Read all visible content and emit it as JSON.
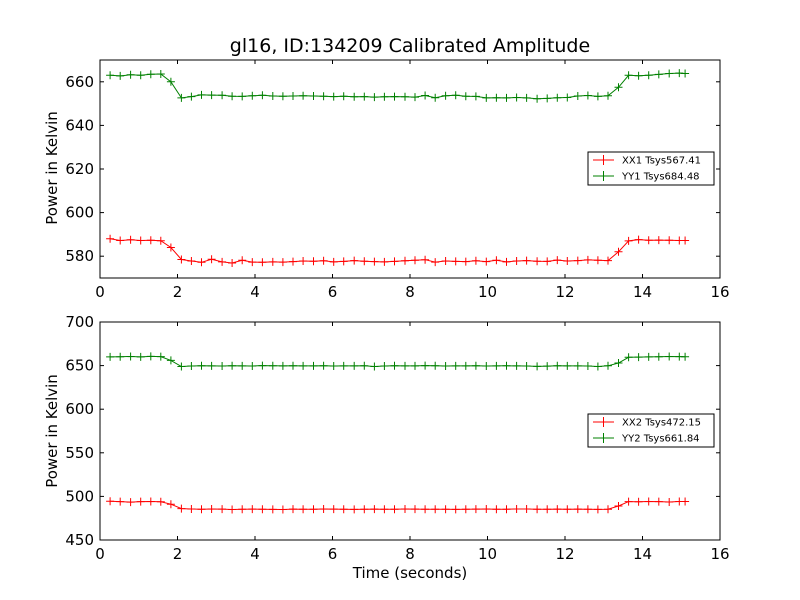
{
  "chart_data": [
    {
      "type": "line",
      "title": "gl16, ID:134209 Calibrated Amplitude",
      "xlabel": "",
      "ylabel": "Power in Kelvin",
      "xlim": [
        0,
        16
      ],
      "ylim": [
        570,
        670
      ],
      "xticks": [
        0,
        2,
        4,
        6,
        8,
        10,
        12,
        14,
        16
      ],
      "yticks": [
        580,
        600,
        620,
        640,
        660
      ],
      "legend_position": "right",
      "x": [
        0.26,
        0.52,
        0.79,
        1.05,
        1.31,
        1.57,
        1.83,
        2.1,
        2.36,
        2.62,
        2.88,
        3.15,
        3.41,
        3.67,
        3.93,
        4.19,
        4.46,
        4.72,
        4.98,
        5.24,
        5.51,
        5.77,
        6.03,
        6.29,
        6.56,
        6.82,
        7.08,
        7.34,
        7.6,
        7.87,
        8.13,
        8.39,
        8.65,
        8.92,
        9.18,
        9.44,
        9.7,
        9.97,
        10.23,
        10.49,
        10.75,
        11.01,
        11.28,
        11.54,
        11.8,
        12.06,
        12.33,
        12.59,
        12.85,
        13.11,
        13.38,
        13.64,
        13.9,
        14.16,
        14.42,
        14.69,
        14.95,
        15.1
      ],
      "series": [
        {
          "name": "XX1 Tsys567.41",
          "color": "#ff0000",
          "values": [
            588.0,
            587.2,
            587.5,
            587.2,
            587.3,
            587.1,
            584.0,
            578.5,
            577.8,
            577.2,
            578.6,
            577.4,
            576.9,
            578.1,
            577.3,
            577.2,
            577.4,
            577.3,
            577.5,
            577.8,
            577.7,
            577.9,
            577.4,
            577.6,
            578.0,
            577.7,
            577.5,
            577.4,
            577.6,
            577.9,
            578.1,
            578.4,
            577.3,
            577.8,
            577.6,
            577.5,
            577.9,
            577.5,
            578.1,
            577.4,
            577.8,
            578.0,
            577.7,
            577.6,
            578.2,
            577.8,
            578.0,
            578.3,
            578.1,
            578.0,
            582.0,
            587.0,
            587.6,
            587.3,
            587.4,
            587.3,
            587.2,
            587.2
          ]
        },
        {
          "name": "YY1 Tsys684.48",
          "color": "#008000",
          "values": [
            663.0,
            662.7,
            663.2,
            663.0,
            663.5,
            663.6,
            660.0,
            652.6,
            653.2,
            654.0,
            653.9,
            653.8,
            653.4,
            653.3,
            653.6,
            653.8,
            653.5,
            653.4,
            653.5,
            653.6,
            653.5,
            653.4,
            653.2,
            653.4,
            653.1,
            653.2,
            653.0,
            653.1,
            653.2,
            653.1,
            653.0,
            653.7,
            652.7,
            653.6,
            653.8,
            653.4,
            653.3,
            652.6,
            652.7,
            652.6,
            652.8,
            652.6,
            652.2,
            652.4,
            652.7,
            652.8,
            653.5,
            653.7,
            653.3,
            653.6,
            657.5,
            663.0,
            662.8,
            663.0,
            663.4,
            663.8,
            664.0,
            663.8
          ]
        }
      ]
    },
    {
      "type": "line",
      "title": "",
      "xlabel": "Time (seconds)",
      "ylabel": "Power in Kelvin",
      "xlim": [
        0,
        16
      ],
      "ylim": [
        450,
        700
      ],
      "xticks": [
        0,
        2,
        4,
        6,
        8,
        10,
        12,
        14,
        16
      ],
      "yticks": [
        450,
        500,
        550,
        600,
        650,
        700
      ],
      "legend_position": "right",
      "x": [
        0.26,
        0.52,
        0.79,
        1.05,
        1.31,
        1.57,
        1.83,
        2.1,
        2.36,
        2.62,
        2.88,
        3.15,
        3.41,
        3.67,
        3.93,
        4.19,
        4.46,
        4.72,
        4.98,
        5.24,
        5.51,
        5.77,
        6.03,
        6.29,
        6.56,
        6.82,
        7.08,
        7.34,
        7.6,
        7.87,
        8.13,
        8.39,
        8.65,
        8.92,
        9.18,
        9.44,
        9.7,
        9.97,
        10.23,
        10.49,
        10.75,
        11.01,
        11.28,
        11.54,
        11.8,
        12.06,
        12.33,
        12.59,
        12.85,
        13.11,
        13.38,
        13.64,
        13.9,
        14.16,
        14.42,
        14.69,
        14.95,
        15.1
      ],
      "series": [
        {
          "name": "XX2 Tsys472.15",
          "color": "#ff0000",
          "values": [
            494.5,
            494.0,
            493.5,
            494.0,
            494.2,
            493.8,
            491.0,
            486.0,
            485.5,
            485.3,
            485.5,
            485.4,
            485.0,
            485.2,
            485.4,
            485.3,
            485.1,
            485.0,
            485.4,
            485.3,
            485.2,
            485.5,
            485.4,
            485.3,
            485.1,
            485.3,
            485.4,
            485.2,
            485.3,
            485.5,
            485.4,
            485.3,
            485.2,
            485.3,
            485.1,
            485.3,
            485.4,
            485.5,
            485.2,
            485.3,
            485.5,
            485.6,
            485.3,
            485.2,
            485.4,
            485.3,
            485.4,
            485.2,
            485.1,
            485.3,
            489.0,
            494.0,
            493.8,
            494.2,
            494.0,
            493.6,
            494.1,
            494.2
          ]
        },
        {
          "name": "YY2 Tsys661.84",
          "color": "#008000",
          "values": [
            660.0,
            660.2,
            660.4,
            660.0,
            660.5,
            660.3,
            656.0,
            649.0,
            649.5,
            649.8,
            649.7,
            649.5,
            649.8,
            649.6,
            649.5,
            650.0,
            649.8,
            649.6,
            649.9,
            649.7,
            649.6,
            649.8,
            649.5,
            649.7,
            649.6,
            649.8,
            649.0,
            649.5,
            649.8,
            649.7,
            649.6,
            650.0,
            649.8,
            649.5,
            649.6,
            649.7,
            649.8,
            649.5,
            649.6,
            649.8,
            649.7,
            649.5,
            649.1,
            649.4,
            649.8,
            649.6,
            649.7,
            649.5,
            649.0,
            649.8,
            653.0,
            659.5,
            659.8,
            660.0,
            660.2,
            660.4,
            660.3,
            660.1
          ]
        }
      ]
    }
  ]
}
